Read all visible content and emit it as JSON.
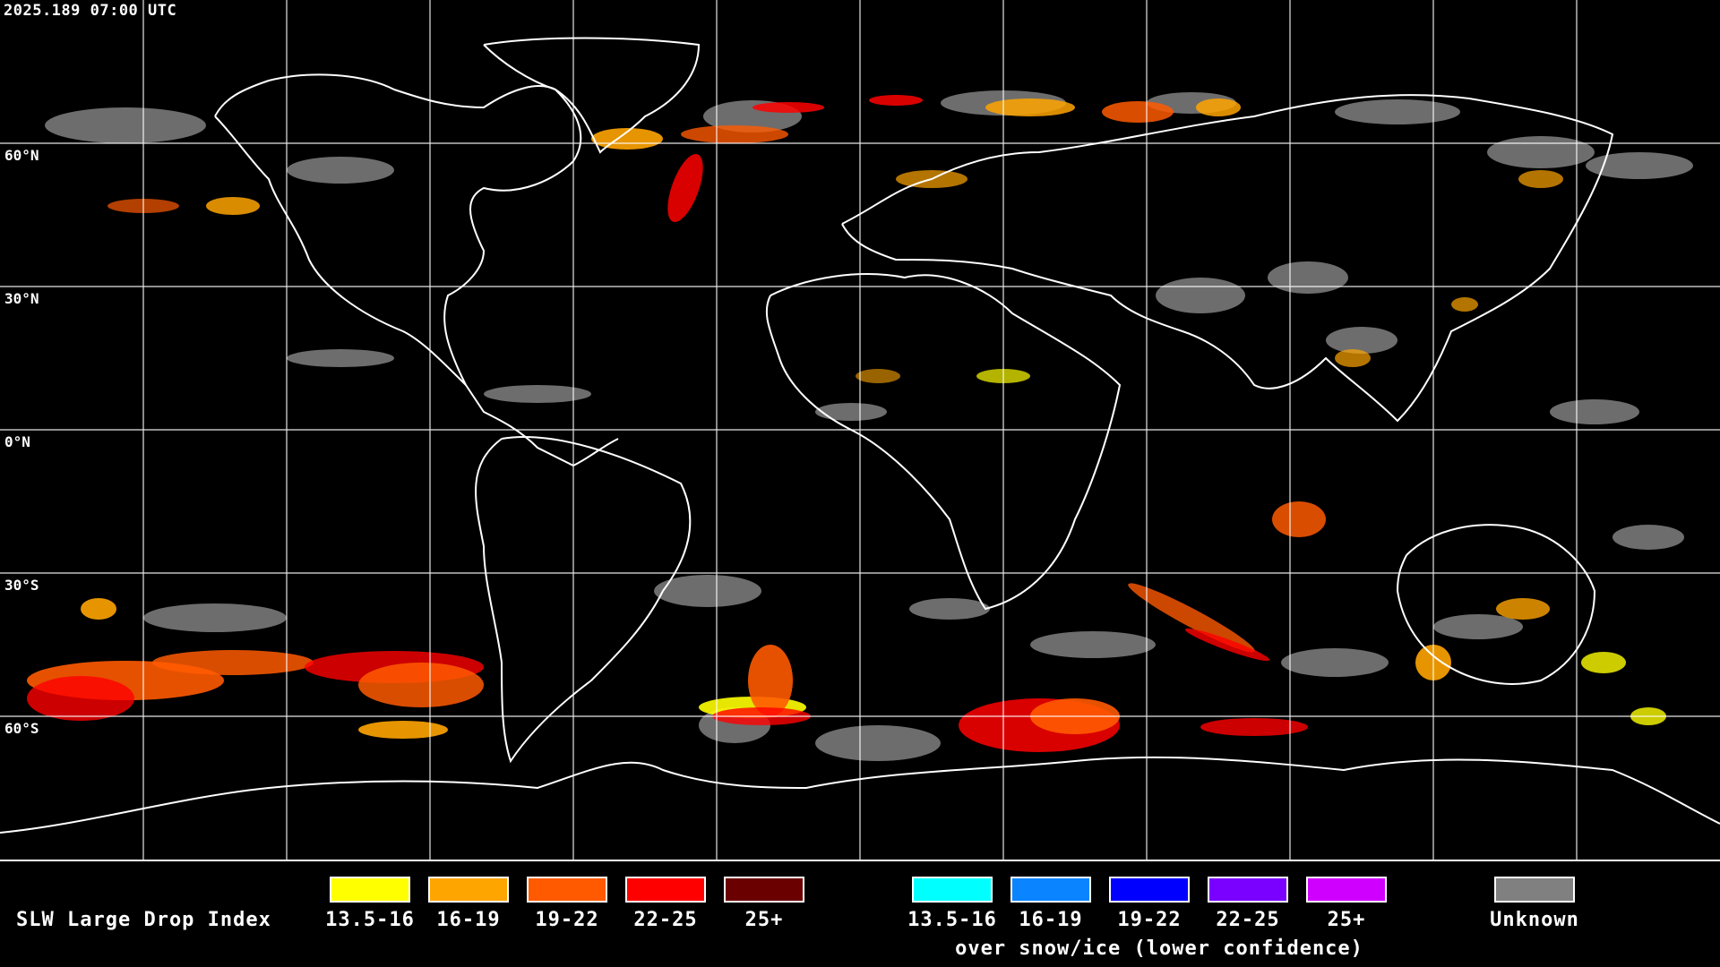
{
  "timestamp": "2025.189 07:00 UTC",
  "lat_labels": [
    "60°N",
    "30°N",
    "0°N",
    "30°S",
    "60°S"
  ],
  "legend": {
    "title": "SLW Large Drop Index",
    "bins": [
      {
        "label": "13.5-16",
        "color": "#ffff00"
      },
      {
        "label": "16-19",
        "color": "#ffa500"
      },
      {
        "label": "19-22",
        "color": "#ff5a00"
      },
      {
        "label": "22-25",
        "color": "#ff0000"
      },
      {
        "label": "25+",
        "color": "#6b0000"
      }
    ],
    "snow_bins": [
      {
        "label": "13.5-16",
        "color": "#00ffff"
      },
      {
        "label": "16-19",
        "color": "#0a84ff"
      },
      {
        "label": "19-22",
        "color": "#0000ff"
      },
      {
        "label": "22-25",
        "color": "#7a00ff"
      },
      {
        "label": "25+",
        "color": "#d000ff"
      }
    ],
    "snow_note": "over snow/ice (lower confidence)",
    "unknown": {
      "label": "Unknown",
      "color": "#808080"
    }
  }
}
